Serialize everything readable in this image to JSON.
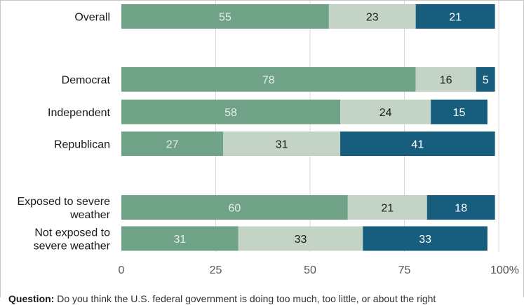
{
  "colors": {
    "series": [
      "#6fa287",
      "#c3d4c7",
      "#175d7d"
    ],
    "label_text": [
      "#e6efe9",
      "#1a1a1a",
      "#ffffff"
    ],
    "grid": "#d9d9d9",
    "frame": "#c8c8c8"
  },
  "chart_data": {
    "type": "bar",
    "orientation": "horizontal",
    "stacked": true,
    "categories": [
      {
        "lines": [
          "Overall"
        ],
        "group": 0
      },
      {
        "lines": [
          "Democrat"
        ],
        "group": 1
      },
      {
        "lines": [
          "Independent"
        ],
        "group": 1
      },
      {
        "lines": [
          "Republican"
        ],
        "group": 1
      },
      {
        "lines": [
          "Exposed to severe",
          "weather"
        ],
        "group": 2
      },
      {
        "lines": [
          "Not exposed to",
          "severe weather"
        ],
        "group": 2
      }
    ],
    "series": [
      {
        "values": [
          55,
          78,
          58,
          27,
          60,
          31
        ]
      },
      {
        "values": [
          23,
          16,
          24,
          31,
          21,
          33
        ]
      },
      {
        "values": [
          21,
          5,
          15,
          41,
          18,
          33
        ]
      }
    ],
    "x_ticks": [
      "0",
      "25",
      "50",
      "75",
      "100%"
    ],
    "xlim": [
      0,
      100
    ],
    "grid": true,
    "legend": false
  },
  "question": {
    "label": "Question:",
    "text": "Do you think the U.S. federal government is doing too much, too little, or about the right"
  }
}
